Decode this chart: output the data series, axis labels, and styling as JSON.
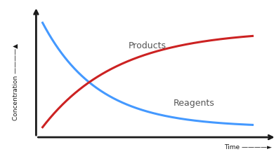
{
  "background_color": "#ffffff",
  "reagents_color": "#4499ff",
  "products_color": "#cc2222",
  "line_width": 2.2,
  "ylabel": "Concentration ———————",
  "xlabel": "Time ———————►",
  "products_label": "Products",
  "reagents_label": "Reagents",
  "label_fontsize": 9,
  "axis_color": "#1a1a1a",
  "reagents_decay": 3.8,
  "products_rise": 2.8,
  "products_scale": 0.93
}
